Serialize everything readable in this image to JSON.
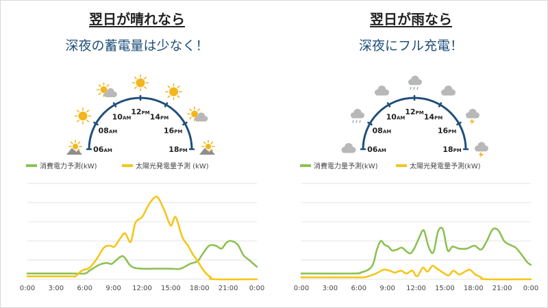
{
  "panels": [
    {
      "title": "翌日が晴れなら",
      "subtitle": "深夜の蓄電量は少なく！",
      "weather": "sunny",
      "dial": [
        {
          "hour": "06",
          "suf": "AM",
          "icon": "mountain-sun-icon"
        },
        {
          "hour": "08",
          "suf": "AM",
          "icon": "sun-icon"
        },
        {
          "hour": "10",
          "suf": "AM",
          "icon": "sun-cloud-icon"
        },
        {
          "hour": "12",
          "suf": "PM",
          "icon": "sun-icon"
        },
        {
          "hour": "14",
          "suf": "PM",
          "icon": "sun-icon"
        },
        {
          "hour": "16",
          "suf": "PM",
          "icon": "sun-cloud-icon"
        },
        {
          "hour": "18",
          "suf": "PM",
          "icon": "mountain-sun-icon"
        }
      ],
      "legend": {
        "consumption": "消費電力予測(kW)",
        "generation": "太陽光発電量予測 (kW)"
      }
    },
    {
      "title": "翌日が雨なら",
      "subtitle": "深夜にフル充電！",
      "weather": "rainy",
      "dial": [
        {
          "hour": "06",
          "suf": "AM",
          "icon": "cloud-icon"
        },
        {
          "hour": "08",
          "suf": "AM",
          "icon": "rain-cloud-icon"
        },
        {
          "hour": "10",
          "suf": "AM",
          "icon": "cloud-icon"
        },
        {
          "hour": "12",
          "suf": "PM",
          "icon": "rain-cloud-icon"
        },
        {
          "hour": "14",
          "suf": "PM",
          "icon": "cloud-icon"
        },
        {
          "hour": "16",
          "suf": "PM",
          "icon": "thunder-cloud-icon"
        },
        {
          "hour": "18",
          "suf": "PM",
          "icon": "thunder-cloud-icon"
        }
      ],
      "legend": {
        "consumption": "消費電力量予測(kW)",
        "generation": "太陽光発電量予測(kW)"
      }
    }
  ],
  "colors": {
    "consumption": "#8cc152",
    "generation": "#f5c518",
    "dial": "#1f4e79",
    "grid": "#e3e3e3"
  },
  "chart_data": [
    {
      "type": "line",
      "xlabel": "",
      "ylabel": "",
      "x_ticks": [
        "0:00",
        "3:00",
        "6:00",
        "9:00",
        "12:00",
        "15:00",
        "18:00",
        "21:00",
        "0:00"
      ],
      "xlim": [
        0,
        24
      ],
      "ylim": [
        0,
        5
      ],
      "grid": true,
      "legend_position": "top",
      "series": [
        {
          "name": "消費電力予測(kW)",
          "color": "#8cc152",
          "x": [
            0,
            4.5,
            6,
            6.5,
            7.5,
            8.3,
            8.8,
            9.3,
            10,
            10.7,
            11.2,
            12,
            13,
            14,
            15,
            16,
            17,
            17.8,
            18.3,
            19,
            19.7,
            20.3,
            20.8,
            21.3,
            22,
            22.6,
            23.2,
            24
          ],
          "y": [
            0.3,
            0.3,
            0.3,
            0.45,
            0.75,
            0.85,
            0.8,
            1.0,
            1.2,
            0.75,
            0.6,
            0.55,
            0.55,
            0.55,
            0.55,
            0.55,
            0.8,
            0.95,
            1.3,
            1.75,
            1.75,
            1.6,
            1.9,
            2.0,
            1.8,
            1.25,
            1.0,
            0.65
          ]
        },
        {
          "name": "太陽光発電量予測 (kW)",
          "color": "#f5c518",
          "x": [
            0,
            4.5,
            5,
            5.7,
            6.5,
            7.3,
            8,
            8.6,
            9.1,
            9.6,
            10.2,
            10.8,
            11.3,
            12,
            12.7,
            13.4,
            13.8,
            14.4,
            15,
            15.5,
            16.2,
            16.8,
            17.3,
            17.8,
            18.3,
            18.8,
            19.2,
            19.5,
            24
          ],
          "y": [
            0.15,
            0.15,
            0.15,
            0.45,
            0.6,
            1.1,
            1.65,
            1.75,
            1.7,
            2.05,
            2.4,
            1.95,
            2.95,
            3.25,
            3.9,
            4.3,
            4.15,
            3.5,
            2.8,
            3.25,
            2.2,
            1.75,
            1.3,
            0.95,
            0.55,
            0.25,
            0.1,
            0.0,
            0.0
          ]
        }
      ]
    },
    {
      "type": "line",
      "xlabel": "",
      "ylabel": "",
      "x_ticks": [
        "0:00",
        "3:00",
        "6:00",
        "9:00",
        "12:00",
        "15:00",
        "18:00",
        "21:00",
        "0:00"
      ],
      "xlim": [
        0,
        24
      ],
      "ylim": [
        0,
        5
      ],
      "grid": true,
      "legend_position": "top",
      "series": [
        {
          "name": "消費電力量予測(kW)",
          "color": "#8cc152",
          "x": [
            0,
            5.5,
            6.2,
            7,
            7.5,
            7.9,
            8.3,
            8.7,
            9.1,
            9.5,
            10,
            10.5,
            11,
            11.4,
            11.8,
            12.3,
            12.8,
            13.3,
            13.8,
            14.3,
            14.8,
            15.3,
            15.8,
            16.5,
            17.3,
            18.1,
            18.8,
            19.4,
            20,
            20.6,
            21.2,
            21.8,
            22.4,
            23,
            23.6,
            24
          ],
          "y": [
            0.3,
            0.3,
            0.35,
            0.5,
            0.8,
            1.55,
            2.0,
            1.8,
            1.7,
            1.5,
            1.55,
            1.65,
            1.45,
            1.35,
            1.6,
            2.15,
            2.55,
            1.7,
            1.4,
            2.5,
            2.6,
            1.5,
            1.7,
            1.6,
            1.6,
            1.75,
            1.55,
            2.0,
            2.6,
            2.55,
            2.0,
            1.8,
            1.65,
            1.3,
            0.9,
            0.75
          ]
        },
        {
          "name": "太陽光発電量予測(kW)",
          "color": "#f5c518",
          "x": [
            0,
            5.5,
            6.5,
            7,
            7.8,
            8.6,
            9.2,
            9.8,
            10.4,
            11,
            11.6,
            12.1,
            12.7,
            13.2,
            13.7,
            14.2,
            14.8,
            15.4,
            15.9,
            16.5,
            17.1,
            17.6,
            18.2,
            18.8,
            19.3,
            24
          ],
          "y": [
            0.1,
            0.1,
            0.1,
            0.15,
            0.3,
            0.5,
            0.45,
            0.35,
            0.45,
            0.3,
            0.45,
            0.15,
            0.6,
            0.4,
            0.7,
            0.55,
            0.35,
            0.2,
            0.45,
            0.25,
            0.4,
            0.5,
            0.25,
            0.1,
            0.0,
            0.0
          ]
        }
      ]
    }
  ]
}
